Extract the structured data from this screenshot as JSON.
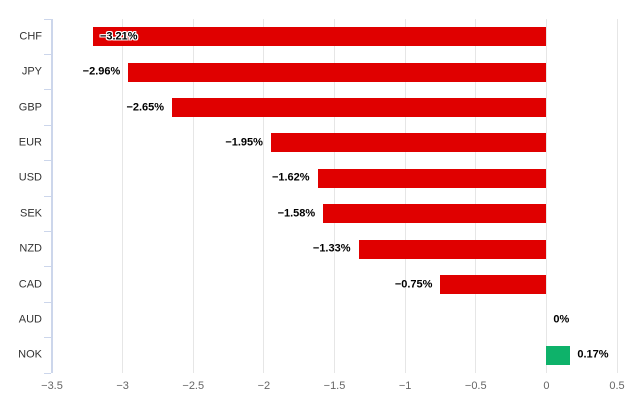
{
  "chart_data": {
    "type": "bar",
    "orientation": "horizontal",
    "categories": [
      "CHF",
      "JPY",
      "GBP",
      "EUR",
      "USD",
      "SEK",
      "NZD",
      "CAD",
      "AUD",
      "NOK"
    ],
    "values": [
      -3.21,
      -2.96,
      -2.65,
      -1.95,
      -1.62,
      -1.58,
      -1.33,
      -0.75,
      0,
      0.17
    ],
    "data_labels": [
      "−3.21%",
      "−2.96%",
      "−2.65%",
      "−1.95%",
      "−1.62%",
      "−1.58%",
      "−1.33%",
      "−0.75%",
      "0%",
      "0.17%"
    ],
    "x_ticks": [
      -3.5,
      -3,
      -2.5,
      -2,
      -1.5,
      -1,
      -0.5,
      0,
      0.5
    ],
    "x_tick_labels": [
      "−3.5",
      "−3",
      "−2.5",
      "−2",
      "−1.5",
      "−1",
      "−0.5",
      "0",
      "0.5"
    ],
    "xlim": [
      -3.5,
      0.5
    ],
    "grid": true,
    "legend": "none",
    "colors": {
      "negative_bar": "#e00000",
      "positive_bar": "#0eb26a",
      "gridline": "#e6e6e6",
      "axis_line": "#ccd6eb",
      "category_label": "#333333",
      "tick_label": "#666666",
      "data_label": "#000000"
    }
  }
}
